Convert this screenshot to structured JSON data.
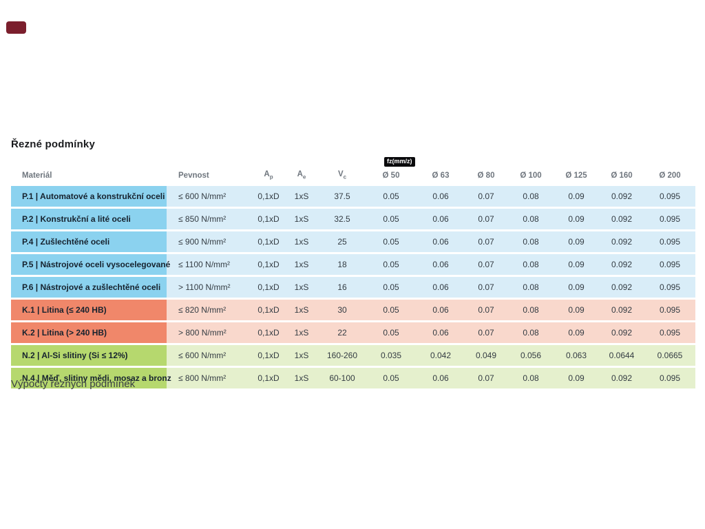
{
  "page": {
    "title": "Řezné podmínky",
    "footer_text": "Výpočty řezných podmínek"
  },
  "top_marker": {
    "color": "#7B1F2D"
  },
  "table": {
    "fz_badge": "fz(mm/z)",
    "headers": {
      "material": "Materiál",
      "pevnost": "Pevnost",
      "ap": {
        "base": "A",
        "sub": "p"
      },
      "ae": {
        "base": "A",
        "sub": "e"
      },
      "vc": {
        "base": "V",
        "sub": "c"
      },
      "diameters": [
        "Ø 50",
        "Ø 63",
        "Ø 80",
        "Ø 100",
        "Ø 125",
        "Ø 160",
        "Ø 200"
      ]
    },
    "colors": {
      "blue_dark": "#8BD2EF",
      "blue_light": "#D9EDF8",
      "salmon_dark": "#F0876A",
      "salmon_light": "#F9D8CC",
      "green_dark": "#B6D86E",
      "green_light": "#E5F0CD"
    },
    "rows": [
      {
        "tone": "blue",
        "material": "P.1 | Automatové a konstrukční oceli",
        "pevnost": "≤ 600 N/mm²",
        "ap": "0,1xD",
        "ae": "1xS",
        "vc": "37.5",
        "fz": [
          "0.05",
          "0.06",
          "0.07",
          "0.08",
          "0.09",
          "0.092",
          "0.095"
        ]
      },
      {
        "tone": "blue",
        "material": "P.2 | Konstrukční a lité oceli",
        "pevnost": "≤ 850 N/mm²",
        "ap": "0,1xD",
        "ae": "1xS",
        "vc": "32.5",
        "fz": [
          "0.05",
          "0.06",
          "0.07",
          "0.08",
          "0.09",
          "0.092",
          "0.095"
        ]
      },
      {
        "tone": "blue",
        "material": "P.4 | Zušlechtěné oceli",
        "pevnost": "≤ 900 N/mm²",
        "ap": "0,1xD",
        "ae": "1xS",
        "vc": "25",
        "fz": [
          "0.05",
          "0.06",
          "0.07",
          "0.08",
          "0.09",
          "0.092",
          "0.095"
        ]
      },
      {
        "tone": "blue",
        "material": "P.5 | Nástrojové oceli vysocelegované",
        "pevnost": "≤ 1100 N/mm²",
        "ap": "0,1xD",
        "ae": "1xS",
        "vc": "18",
        "fz": [
          "0.05",
          "0.06",
          "0.07",
          "0.08",
          "0.09",
          "0.092",
          "0.095"
        ]
      },
      {
        "tone": "blue",
        "material": "P.6 | Nástrojové a zušlechtěné oceli",
        "pevnost": "> 1100 N/mm²",
        "ap": "0,1xD",
        "ae": "1xS",
        "vc": "16",
        "fz": [
          "0.05",
          "0.06",
          "0.07",
          "0.08",
          "0.09",
          "0.092",
          "0.095"
        ]
      },
      {
        "tone": "salmon",
        "material": "K.1 | Litina (≤ 240 HB)",
        "pevnost": "≤ 820 N/mm²",
        "ap": "0,1xD",
        "ae": "1xS",
        "vc": "30",
        "fz": [
          "0.05",
          "0.06",
          "0.07",
          "0.08",
          "0.09",
          "0.092",
          "0.095"
        ]
      },
      {
        "tone": "salmon",
        "material": "K.2 | Litina (> 240 HB)",
        "pevnost": "> 800 N/mm²",
        "ap": "0,1xD",
        "ae": "1xS",
        "vc": "22",
        "fz": [
          "0.05",
          "0.06",
          "0.07",
          "0.08",
          "0.09",
          "0.092",
          "0.095"
        ]
      },
      {
        "tone": "green",
        "material": "N.2 | Al-Si slitiny (Si ≤ 12%)",
        "pevnost": "≤ 600 N/mm²",
        "ap": "0,1xD",
        "ae": "1xS",
        "vc": "160-260",
        "fz": [
          "0.035",
          "0.042",
          "0.049",
          "0.056",
          "0.063",
          "0.0644",
          "0.0665"
        ]
      },
      {
        "tone": "green",
        "material": "N.4 | Měď, slitiny mědi, mosaz a bronz",
        "pevnost": "≤ 800 N/mm²",
        "ap": "0,1xD",
        "ae": "1xS",
        "vc": "60-100",
        "fz": [
          "0.05",
          "0.06",
          "0.07",
          "0.08",
          "0.09",
          "0.092",
          "0.095"
        ]
      }
    ]
  }
}
